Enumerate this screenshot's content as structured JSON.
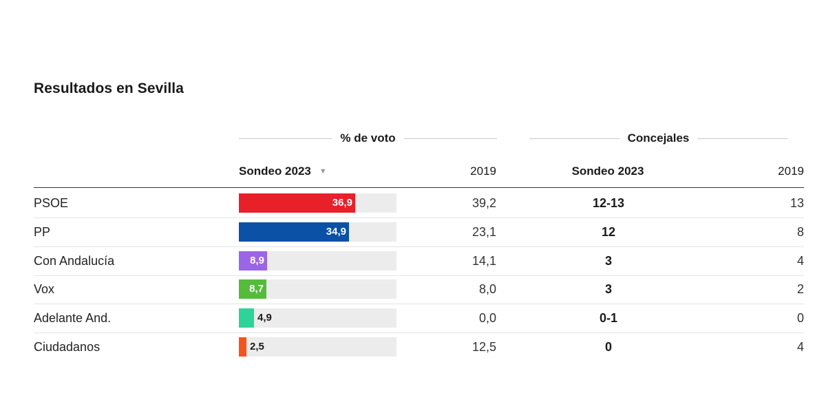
{
  "title": "Resultados en Sevilla",
  "headers": {
    "vote_group": "% de voto",
    "seats_group": "Concejales",
    "survey": "Sondeo 2023",
    "prev": "2019",
    "seats_survey": "Sondeo 2023",
    "seats_prev": "2019"
  },
  "scale_max": 50,
  "chart_data": {
    "type": "table",
    "title": "Resultados en Sevilla",
    "columns": [
      "% de voto Sondeo 2023",
      "% de voto 2019",
      "Concejales Sondeo 2023",
      "Concejales 2019"
    ],
    "rows": [
      {
        "party": "PSOE",
        "vote_2023": 36.9,
        "vote_2023_label": "36,9",
        "vote_2019": "39,2",
        "seats_2023": "12-13",
        "seats_2019": "13",
        "color": "#e8202a"
      },
      {
        "party": "PP",
        "vote_2023": 34.9,
        "vote_2023_label": "34,9",
        "vote_2019": "23,1",
        "seats_2023": "12",
        "seats_2019": "8",
        "color": "#0b51a6"
      },
      {
        "party": "Con Andalucía",
        "vote_2023": 8.9,
        "vote_2023_label": "8,9",
        "vote_2019": "14,1",
        "seats_2023": "3",
        "seats_2019": "4",
        "color": "#9a65e6"
      },
      {
        "party": "Vox",
        "vote_2023": 8.7,
        "vote_2023_label": "8,7",
        "vote_2019": "8,0",
        "seats_2023": "3",
        "seats_2019": "2",
        "color": "#55bb3b"
      },
      {
        "party": "Adelante And.",
        "vote_2023": 4.9,
        "vote_2023_label": "4,9",
        "vote_2019": "0,0",
        "seats_2023": "0-1",
        "seats_2019": "0",
        "color": "#2ed39a"
      },
      {
        "party": "Ciudadanos",
        "vote_2023": 2.5,
        "vote_2023_label": "2,5",
        "vote_2019": "12,5",
        "seats_2023": "0",
        "seats_2019": "4",
        "color": "#f5541c"
      }
    ]
  }
}
